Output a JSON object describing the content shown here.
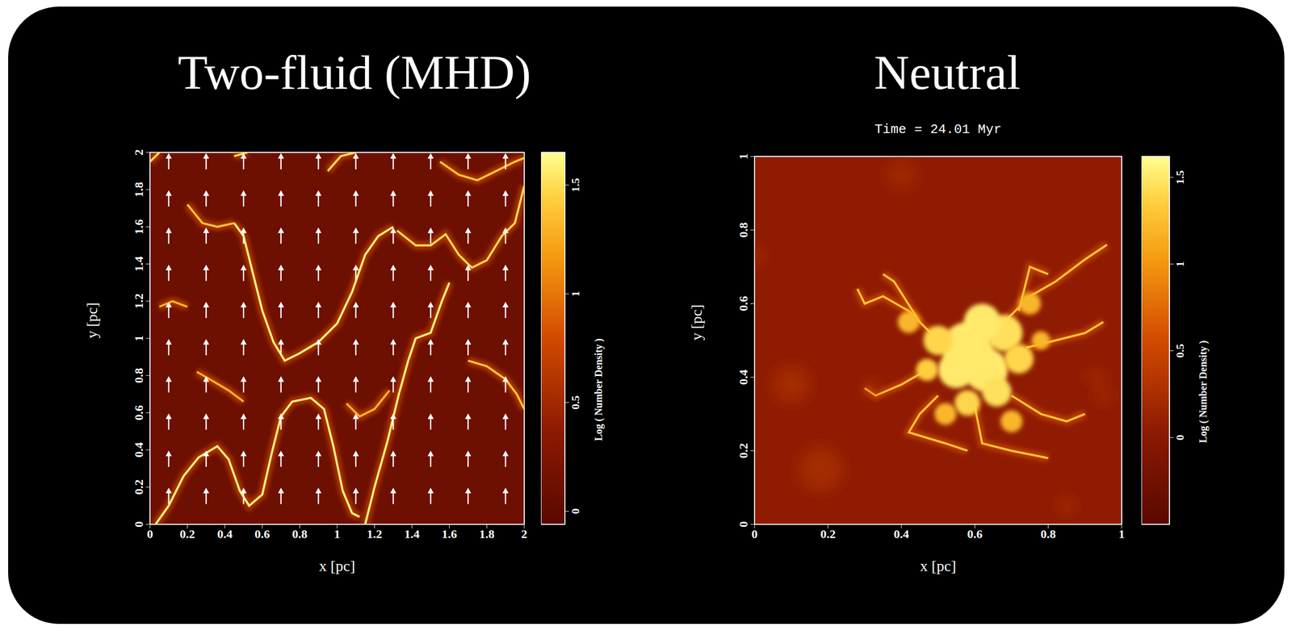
{
  "chart_data": [
    {
      "type": "heatmap",
      "title": "Two-fluid (MHD)",
      "xlabel": "x [pc]",
      "ylabel": "y [pc]",
      "xlim": [
        0,
        2
      ],
      "ylim": [
        0,
        2
      ],
      "xticks": [
        0,
        0.2,
        0.4,
        0.6,
        0.8,
        1,
        1.2,
        1.4,
        1.6,
        1.8,
        2
      ],
      "yticks": [
        0,
        0.2,
        0.4,
        0.6,
        0.8,
        1,
        1.2,
        1.4,
        1.6,
        1.8,
        2
      ],
      "colorbar": {
        "label": "Log ( Number Density )",
        "range": [
          -0.06,
          1.65
        ],
        "ticks": [
          0,
          0.5,
          1,
          1.5
        ]
      },
      "background_log_density": 0.1,
      "field_vectors": {
        "direction": "up",
        "x": [
          0.1,
          0.3,
          0.5,
          0.7,
          0.9,
          1.1,
          1.3,
          1.5,
          1.7,
          1.9
        ],
        "y": [
          0.15,
          0.35,
          0.55,
          0.75,
          0.95,
          1.15,
          1.35,
          1.55,
          1.75,
          1.95
        ]
      },
      "filaments": [
        {
          "log_density": 1.6,
          "points": [
            [
              0.03,
              0.0
            ],
            [
              0.1,
              0.1
            ],
            [
              0.18,
              0.26
            ],
            [
              0.26,
              0.36
            ],
            [
              0.36,
              0.42
            ],
            [
              0.42,
              0.35
            ],
            [
              0.48,
              0.18
            ],
            [
              0.53,
              0.1
            ],
            [
              0.6,
              0.16
            ],
            [
              0.65,
              0.38
            ],
            [
              0.7,
              0.58
            ],
            [
              0.76,
              0.66
            ],
            [
              0.86,
              0.68
            ],
            [
              0.93,
              0.62
            ],
            [
              0.98,
              0.42
            ],
            [
              1.03,
              0.18
            ],
            [
              1.08,
              0.06
            ],
            [
              1.12,
              0.04
            ]
          ]
        },
        {
          "log_density": 1.6,
          "points": [
            [
              1.15,
              0.0
            ],
            [
              1.2,
              0.2
            ],
            [
              1.27,
              0.45
            ],
            [
              1.33,
              0.7
            ],
            [
              1.38,
              0.88
            ],
            [
              1.42,
              1.0
            ],
            [
              1.5,
              1.03
            ],
            [
              1.56,
              1.2
            ],
            [
              1.6,
              1.3
            ]
          ]
        },
        {
          "log_density": 1.5,
          "points": [
            [
              1.32,
              1.58
            ],
            [
              1.42,
              1.5
            ],
            [
              1.5,
              1.5
            ],
            [
              1.58,
              1.56
            ],
            [
              1.65,
              1.45
            ],
            [
              1.72,
              1.38
            ],
            [
              1.8,
              1.42
            ],
            [
              1.88,
              1.55
            ],
            [
              1.95,
              1.62
            ],
            [
              2.0,
              1.82
            ]
          ]
        },
        {
          "log_density": 1.6,
          "points": [
            [
              0.45,
              1.62
            ],
            [
              0.5,
              1.55
            ],
            [
              0.55,
              1.35
            ],
            [
              0.6,
              1.15
            ],
            [
              0.66,
              0.98
            ],
            [
              0.72,
              0.88
            ],
            [
              0.8,
              0.92
            ],
            [
              0.9,
              0.98
            ],
            [
              1.0,
              1.08
            ],
            [
              1.08,
              1.25
            ],
            [
              1.15,
              1.45
            ],
            [
              1.22,
              1.55
            ],
            [
              1.3,
              1.6
            ]
          ]
        },
        {
          "log_density": 1.4,
          "points": [
            [
              0.2,
              1.72
            ],
            [
              0.28,
              1.62
            ],
            [
              0.36,
              1.6
            ],
            [
              0.45,
              1.62
            ]
          ]
        },
        {
          "log_density": 1.5,
          "points": [
            [
              0.0,
              1.95
            ],
            [
              0.05,
              2.0
            ]
          ]
        },
        {
          "log_density": 1.5,
          "points": [
            [
              0.45,
              1.98
            ],
            [
              0.52,
              2.0
            ]
          ]
        },
        {
          "log_density": 1.3,
          "points": [
            [
              0.05,
              1.17
            ],
            [
              0.12,
              1.2
            ],
            [
              0.2,
              1.17
            ]
          ]
        },
        {
          "log_density": 1.3,
          "points": [
            [
              0.25,
              0.82
            ],
            [
              0.32,
              0.78
            ],
            [
              0.42,
              0.72
            ],
            [
              0.5,
              0.66
            ]
          ]
        },
        {
          "log_density": 1.3,
          "points": [
            [
              1.05,
              0.65
            ],
            [
              1.12,
              0.58
            ],
            [
              1.2,
              0.62
            ],
            [
              1.28,
              0.72
            ]
          ]
        },
        {
          "log_density": 1.4,
          "points": [
            [
              1.7,
              0.88
            ],
            [
              1.8,
              0.85
            ],
            [
              1.9,
              0.78
            ],
            [
              1.96,
              0.7
            ],
            [
              2.0,
              0.62
            ]
          ]
        },
        {
          "log_density": 1.4,
          "points": [
            [
              1.55,
              1.95
            ],
            [
              1.65,
              1.88
            ],
            [
              1.75,
              1.85
            ],
            [
              1.85,
              1.9
            ],
            [
              1.95,
              1.95
            ],
            [
              2.0,
              1.97
            ]
          ]
        },
        {
          "log_density": 1.5,
          "points": [
            [
              0.95,
              1.9
            ],
            [
              1.02,
              1.98
            ],
            [
              1.1,
              2.0
            ]
          ]
        }
      ]
    },
    {
      "type": "heatmap",
      "title": "Neutral",
      "annotation": "Time = 24.01 Myr",
      "xlabel": "x [pc]",
      "ylabel": "y [pc]",
      "xlim": [
        0,
        1
      ],
      "ylim": [
        0,
        1
      ],
      "xticks": [
        0,
        0.2,
        0.4,
        0.6,
        0.8,
        1
      ],
      "yticks": [
        0,
        0.2,
        0.4,
        0.6,
        0.8,
        1
      ],
      "colorbar": {
        "label": "Log ( Number Density )",
        "range": [
          -0.5,
          1.62
        ],
        "ticks": [
          0,
          0.5,
          1,
          1.5
        ]
      },
      "background_log_density": 0.05,
      "clumps": [
        {
          "x": 0.1,
          "y": 0.38,
          "r": 0.05,
          "log_density": 0.25
        },
        {
          "x": 0.18,
          "y": 0.15,
          "r": 0.06,
          "log_density": 0.25
        },
        {
          "x": 0.32,
          "y": 0.37,
          "r": 0.02,
          "log_density": 0.3
        },
        {
          "x": 0.95,
          "y": 0.35,
          "r": 0.02,
          "log_density": 0.3
        },
        {
          "x": 0.85,
          "y": 0.05,
          "r": 0.02,
          "log_density": 0.3
        },
        {
          "x": 0.4,
          "y": 0.95,
          "r": 0.04,
          "log_density": 0.2
        },
        {
          "x": 0.0,
          "y": 0.73,
          "r": 0.02,
          "log_density": 0.3
        },
        {
          "x": 0.93,
          "y": 0.4,
          "r": 0.02,
          "log_density": 0.3
        },
        {
          "x": 0.58,
          "y": 0.48,
          "r": 0.07,
          "log_density": 1.5
        },
        {
          "x": 0.63,
          "y": 0.42,
          "r": 0.06,
          "log_density": 1.5
        },
        {
          "x": 0.55,
          "y": 0.42,
          "r": 0.05,
          "log_density": 1.5
        },
        {
          "x": 0.68,
          "y": 0.52,
          "r": 0.05,
          "log_density": 1.45
        },
        {
          "x": 0.62,
          "y": 0.55,
          "r": 0.05,
          "log_density": 1.5
        },
        {
          "x": 0.5,
          "y": 0.5,
          "r": 0.04,
          "log_density": 1.4
        },
        {
          "x": 0.66,
          "y": 0.36,
          "r": 0.04,
          "log_density": 1.45
        },
        {
          "x": 0.58,
          "y": 0.33,
          "r": 0.035,
          "log_density": 1.4
        },
        {
          "x": 0.72,
          "y": 0.45,
          "r": 0.04,
          "log_density": 1.4
        },
        {
          "x": 0.47,
          "y": 0.42,
          "r": 0.03,
          "log_density": 1.35
        },
        {
          "x": 0.42,
          "y": 0.55,
          "r": 0.03,
          "log_density": 1.2
        },
        {
          "x": 0.75,
          "y": 0.6,
          "r": 0.03,
          "log_density": 1.2
        },
        {
          "x": 0.78,
          "y": 0.5,
          "r": 0.025,
          "log_density": 1.2
        },
        {
          "x": 0.52,
          "y": 0.3,
          "r": 0.03,
          "log_density": 1.2
        },
        {
          "x": 0.7,
          "y": 0.28,
          "r": 0.03,
          "log_density": 1.2
        }
      ],
      "filaments": [
        {
          "log_density": 1.3,
          "points": [
            [
              0.5,
              0.5
            ],
            [
              0.42,
              0.58
            ],
            [
              0.35,
              0.62
            ],
            [
              0.3,
              0.6
            ],
            [
              0.28,
              0.64
            ]
          ]
        },
        {
          "log_density": 1.3,
          "points": [
            [
              0.45,
              0.55
            ],
            [
              0.38,
              0.66
            ],
            [
              0.35,
              0.68
            ]
          ]
        },
        {
          "log_density": 1.3,
          "points": [
            [
              0.68,
              0.55
            ],
            [
              0.75,
              0.62
            ],
            [
              0.82,
              0.66
            ],
            [
              0.9,
              0.72
            ],
            [
              0.96,
              0.76
            ]
          ]
        },
        {
          "log_density": 1.3,
          "points": [
            [
              0.72,
              0.58
            ],
            [
              0.75,
              0.7
            ],
            [
              0.8,
              0.68
            ]
          ]
        },
        {
          "log_density": 1.3,
          "points": [
            [
              0.74,
              0.48
            ],
            [
              0.82,
              0.5
            ],
            [
              0.9,
              0.52
            ],
            [
              0.95,
              0.55
            ]
          ]
        },
        {
          "log_density": 1.3,
          "points": [
            [
              0.7,
              0.35
            ],
            [
              0.78,
              0.3
            ],
            [
              0.85,
              0.28
            ],
            [
              0.9,
              0.3
            ]
          ]
        },
        {
          "log_density": 1.3,
          "points": [
            [
              0.6,
              0.32
            ],
            [
              0.62,
              0.22
            ],
            [
              0.7,
              0.2
            ],
            [
              0.8,
              0.18
            ]
          ]
        },
        {
          "log_density": 1.3,
          "points": [
            [
              0.5,
              0.35
            ],
            [
              0.45,
              0.3
            ],
            [
              0.42,
              0.25
            ],
            [
              0.52,
              0.22
            ],
            [
              0.58,
              0.2
            ]
          ]
        },
        {
          "log_density": 1.3,
          "points": [
            [
              0.47,
              0.42
            ],
            [
              0.4,
              0.38
            ],
            [
              0.33,
              0.35
            ],
            [
              0.3,
              0.37
            ]
          ]
        }
      ]
    }
  ]
}
